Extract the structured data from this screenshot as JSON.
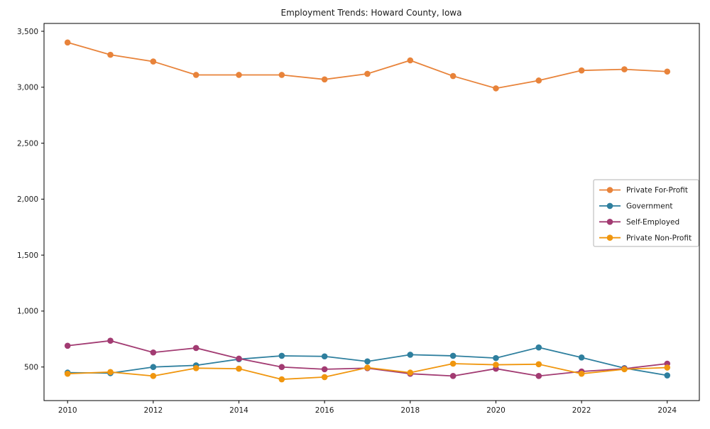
{
  "chart_data": {
    "type": "line",
    "title": "Employment Trends: Howard County, Iowa",
    "xlabel": "",
    "ylabel": "",
    "x": [
      2010,
      2011,
      2012,
      2013,
      2014,
      2015,
      2016,
      2017,
      2018,
      2019,
      2020,
      2021,
      2022,
      2023,
      2024
    ],
    "series": [
      {
        "name": "Private For-Profit",
        "color": "#E8833A",
        "values": [
          3400,
          3290,
          3230,
          3110,
          3110,
          3110,
          3070,
          3120,
          3240,
          3100,
          2990,
          3060,
          3150,
          3160,
          3140
        ]
      },
      {
        "name": "Government",
        "color": "#2E7F9E",
        "values": [
          450,
          445,
          500,
          515,
          570,
          600,
          595,
          550,
          610,
          600,
          580,
          675,
          585,
          490,
          425
        ]
      },
      {
        "name": "Self-Employed",
        "color": "#A23B72",
        "values": [
          690,
          735,
          630,
          670,
          575,
          500,
          480,
          490,
          440,
          420,
          485,
          420,
          460,
          485,
          530
        ]
      },
      {
        "name": "Private Non-Profit",
        "color": "#F0960E",
        "values": [
          440,
          455,
          420,
          490,
          485,
          390,
          410,
          495,
          450,
          530,
          520,
          525,
          440,
          480,
          495
        ]
      }
    ],
    "xticks": [
      2010,
      2012,
      2014,
      2016,
      2018,
      2020,
      2022,
      2024
    ],
    "yticks": [
      500,
      1000,
      1500,
      2000,
      2500,
      3000,
      3500
    ],
    "ytick_labels": [
      "500",
      "1,000",
      "1,500",
      "2,000",
      "2,500",
      "3,000",
      "3,500"
    ],
    "xlim": [
      2009.45,
      2024.75
    ],
    "ylim": [
      200,
      3570
    ],
    "grid": false,
    "marker": "circle",
    "legend": {
      "position": "center-right",
      "border": true,
      "background": "#ffffff",
      "border_color": "#b3b3b3"
    },
    "axis_color": "#000000"
  }
}
